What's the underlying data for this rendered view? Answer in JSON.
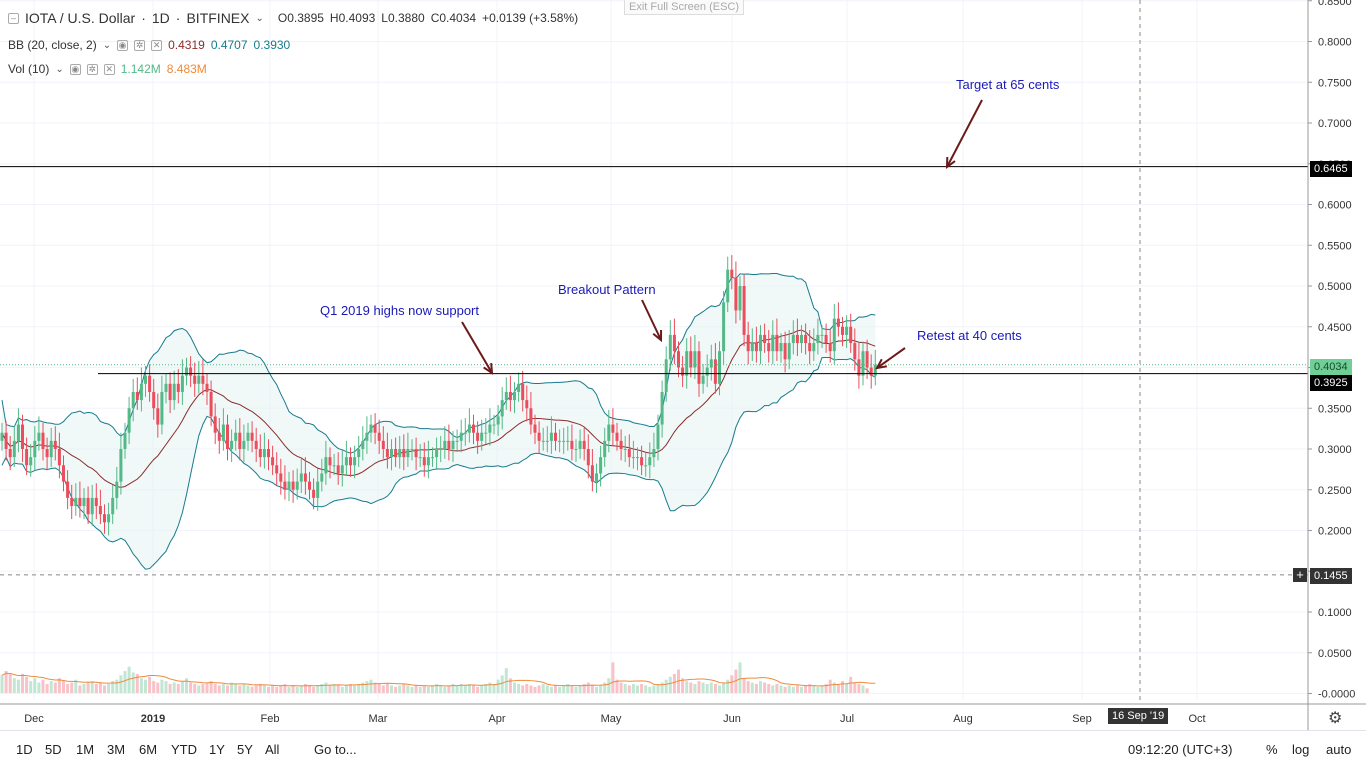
{
  "header": {
    "symbol": "IOTA / U.S. Dollar",
    "interval": "1D",
    "exchange": "BITFINEX",
    "o_label": "O",
    "o": "0.3895",
    "h_label": "H",
    "h": "0.4093",
    "l_label": "L",
    "l": "0.3880",
    "c_label": "C",
    "c": "0.4034",
    "change": "+0.0139 (+3.58%)",
    "exit_fullscreen": "Exit Full Screen (ESC)"
  },
  "indicators": {
    "bb_label": "BB (20, close, 2)",
    "bb_basis": "0.4319",
    "bb_upper": "0.4707",
    "bb_lower": "0.3930",
    "vol_label": "Vol (10)",
    "vol_value": "1.142M",
    "vol_ma": "8.483M"
  },
  "bottom_bar": {
    "ranges": [
      "1D",
      "5D",
      "1M",
      "3M",
      "6M",
      "YTD",
      "1Y",
      "5Y",
      "All"
    ],
    "goto": "Go to...",
    "clock": "09:12:20 (UTC+3)",
    "pct": "%",
    "log": "log",
    "auto": "auto"
  },
  "colors": {
    "up": "#53b987",
    "down": "#eb4d5c",
    "bb_band": "#167b8e",
    "bb_basis": "#8b2c2c",
    "vol_ma": "#ef8a38",
    "annotation": "#1a1ab8",
    "arrow": "#6b1a1a"
  },
  "chart_data": {
    "type": "candlestick",
    "title": "IOTA / U.S. Dollar, 1D, BITFINEX",
    "price_axis_ticks": [
      "0.8500",
      "0.8000",
      "0.7500",
      "0.7000",
      "0.6500",
      "0.6000",
      "0.5500",
      "0.5000",
      "0.4500",
      "0.4000",
      "0.3500",
      "0.3000",
      "0.2500",
      "0.2000",
      "0.1500",
      "0.1000",
      "0.0500",
      "-0.0000"
    ],
    "time_axis_ticks": [
      "Dec",
      "2019",
      "Feb",
      "Mar",
      "Apr",
      "May",
      "Jun",
      "Jul",
      "Aug",
      "Sep",
      "Oct"
    ],
    "crosshair_date": "16 Sep '19",
    "crosshair_price": "0.1455",
    "ylim": [
      0.18,
      0.86
    ],
    "horizontal_lines": [
      {
        "price": 0.6465,
        "label": "0.6465"
      },
      {
        "price": 0.3925,
        "label": "0.3925"
      }
    ],
    "last_price": {
      "price": 0.4034,
      "label": "0.4034"
    },
    "annotations": [
      {
        "text": "Target at 65 cents"
      },
      {
        "text": "Q1 2019 highs now support"
      },
      {
        "text": "Breakout Pattern"
      },
      {
        "text": "Retest at 40 cents"
      }
    ],
    "closes": [
      0.32,
      0.3,
      0.29,
      0.31,
      0.33,
      0.3,
      0.28,
      0.29,
      0.31,
      0.32,
      0.3,
      0.29,
      0.31,
      0.3,
      0.28,
      0.26,
      0.24,
      0.23,
      0.24,
      0.23,
      0.24,
      0.22,
      0.24,
      0.23,
      0.22,
      0.21,
      0.22,
      0.24,
      0.26,
      0.3,
      0.32,
      0.35,
      0.37,
      0.36,
      0.38,
      0.39,
      0.37,
      0.35,
      0.33,
      0.37,
      0.38,
      0.36,
      0.38,
      0.37,
      0.39,
      0.4,
      0.39,
      0.38,
      0.39,
      0.38,
      0.37,
      0.34,
      0.32,
      0.31,
      0.33,
      0.3,
      0.31,
      0.32,
      0.3,
      0.31,
      0.32,
      0.31,
      0.3,
      0.29,
      0.3,
      0.29,
      0.28,
      0.27,
      0.26,
      0.25,
      0.26,
      0.25,
      0.26,
      0.27,
      0.26,
      0.25,
      0.24,
      0.26,
      0.27,
      0.29,
      0.28,
      0.28,
      0.27,
      0.28,
      0.29,
      0.28,
      0.29,
      0.3,
      0.31,
      0.32,
      0.33,
      0.32,
      0.31,
      0.3,
      0.29,
      0.3,
      0.29,
      0.3,
      0.29,
      0.3,
      0.3,
      0.29,
      0.29,
      0.28,
      0.29,
      0.29,
      0.3,
      0.3,
      0.31,
      0.3,
      0.31,
      0.31,
      0.32,
      0.32,
      0.33,
      0.32,
      0.31,
      0.32,
      0.32,
      0.33,
      0.33,
      0.34,
      0.36,
      0.37,
      0.36,
      0.37,
      0.38,
      0.36,
      0.35,
      0.33,
      0.32,
      0.31,
      0.31,
      0.31,
      0.32,
      0.31,
      0.31,
      0.31,
      0.31,
      0.3,
      0.3,
      0.31,
      0.3,
      0.28,
      0.26,
      0.27,
      0.29,
      0.31,
      0.33,
      0.32,
      0.31,
      0.3,
      0.3,
      0.29,
      0.29,
      0.29,
      0.28,
      0.28,
      0.29,
      0.3,
      0.33,
      0.37,
      0.41,
      0.44,
      0.42,
      0.4,
      0.39,
      0.42,
      0.4,
      0.42,
      0.38,
      0.39,
      0.4,
      0.41,
      0.38,
      0.42,
      0.48,
      0.52,
      0.51,
      0.47,
      0.5,
      0.44,
      0.42,
      0.43,
      0.42,
      0.44,
      0.43,
      0.42,
      0.44,
      0.42,
      0.43,
      0.41,
      0.43,
      0.44,
      0.43,
      0.44,
      0.43,
      0.42,
      0.43,
      0.44,
      0.44,
      0.43,
      0.42,
      0.46,
      0.45,
      0.44,
      0.45,
      0.43,
      0.41,
      0.39,
      0.42,
      0.4,
      0.39,
      0.4034
    ],
    "volumes": [
      0.11,
      0.14,
      0.12,
      0.09,
      0.08,
      0.12,
      0.1,
      0.07,
      0.09,
      0.06,
      0.08,
      0.05,
      0.07,
      0.06,
      0.09,
      0.07,
      0.05,
      0.06,
      0.08,
      0.04,
      0.05,
      0.06,
      0.07,
      0.05,
      0.06,
      0.04,
      0.05,
      0.07,
      0.08,
      0.11,
      0.14,
      0.17,
      0.13,
      0.12,
      0.09,
      0.08,
      0.1,
      0.07,
      0.06,
      0.08,
      0.07,
      0.05,
      0.06,
      0.05,
      0.07,
      0.09,
      0.06,
      0.05,
      0.04,
      0.05,
      0.06,
      0.07,
      0.05,
      0.04,
      0.05,
      0.04,
      0.06,
      0.05,
      0.04,
      0.05,
      0.04,
      0.03,
      0.04,
      0.05,
      0.04,
      0.03,
      0.04,
      0.03,
      0.04,
      0.05,
      0.03,
      0.04,
      0.03,
      0.04,
      0.05,
      0.04,
      0.03,
      0.04,
      0.05,
      0.06,
      0.04,
      0.05,
      0.04,
      0.03,
      0.04,
      0.05,
      0.04,
      0.05,
      0.06,
      0.07,
      0.08,
      0.06,
      0.05,
      0.04,
      0.05,
      0.04,
      0.03,
      0.04,
      0.05,
      0.04,
      0.03,
      0.04,
      0.03,
      0.04,
      0.03,
      0.04,
      0.05,
      0.04,
      0.03,
      0.04,
      0.05,
      0.04,
      0.05,
      0.04,
      0.05,
      0.04,
      0.03,
      0.04,
      0.05,
      0.06,
      0.05,
      0.08,
      0.11,
      0.16,
      0.09,
      0.06,
      0.05,
      0.04,
      0.05,
      0.04,
      0.03,
      0.04,
      0.05,
      0.04,
      0.03,
      0.04,
      0.03,
      0.04,
      0.05,
      0.04,
      0.03,
      0.04,
      0.05,
      0.06,
      0.04,
      0.03,
      0.04,
      0.06,
      0.09,
      0.2,
      0.08,
      0.06,
      0.05,
      0.04,
      0.05,
      0.04,
      0.05,
      0.04,
      0.03,
      0.04,
      0.05,
      0.06,
      0.08,
      0.1,
      0.12,
      0.15,
      0.09,
      0.07,
      0.06,
      0.05,
      0.07,
      0.06,
      0.05,
      0.06,
      0.05,
      0.04,
      0.06,
      0.08,
      0.11,
      0.15,
      0.2,
      0.09,
      0.07,
      0.06,
      0.05,
      0.07,
      0.06,
      0.05,
      0.04,
      0.05,
      0.04,
      0.03,
      0.04,
      0.03,
      0.04,
      0.03,
      0.04,
      0.05,
      0.04,
      0.03,
      0.04,
      0.05,
      0.08,
      0.06,
      0.05,
      0.07,
      0.05,
      0.1,
      0.06,
      0.05,
      0.04,
      0.02
    ]
  }
}
